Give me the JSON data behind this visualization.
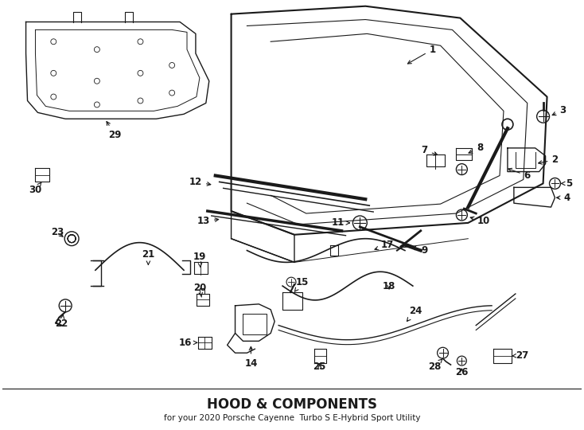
{
  "title": "HOOD & COMPONENTS",
  "subtitle": "for your 2020 Porsche Cayenne  Turbo S E-Hybrid Sport Utility",
  "background_color": "#ffffff",
  "line_color": "#1a1a1a",
  "label_fontsize": 8.5,
  "title_fontsize": 12
}
